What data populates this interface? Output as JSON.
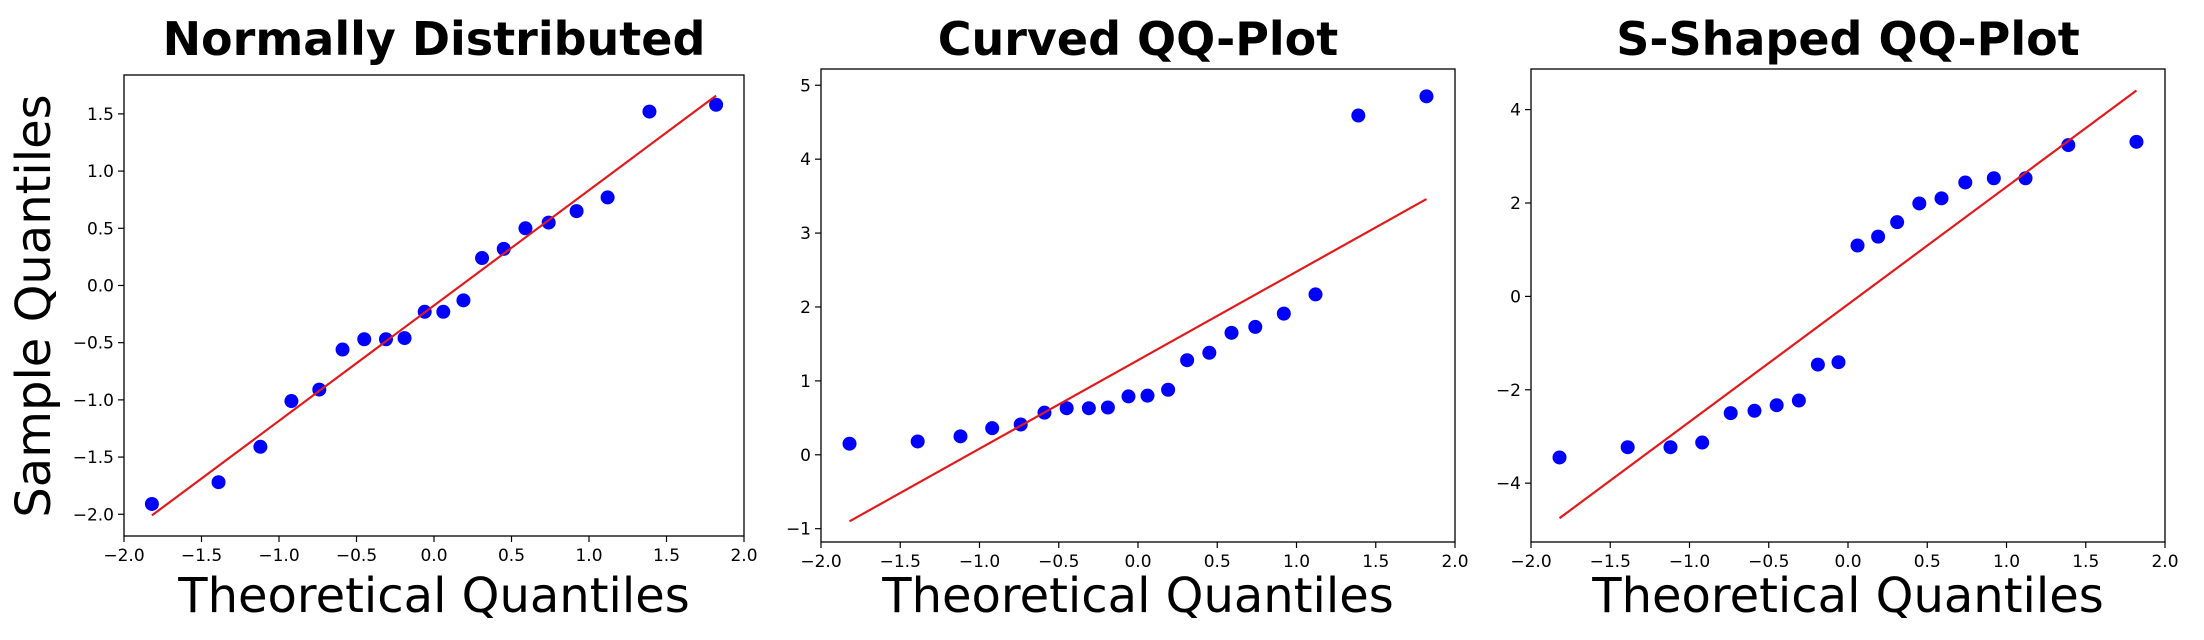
{
  "figure": {
    "ylabel": "Sample Quantiles",
    "colors": {
      "points": "#0000ff",
      "line": "#e31a1c",
      "axes": "#000000",
      "background": "#ffffff"
    }
  },
  "chart_data": [
    {
      "type": "scatter",
      "title": "Normally Distributed",
      "xlabel": "Theoretical Quantiles",
      "ylabel": "Sample Quantiles",
      "xlim": [
        -2.0,
        2.0
      ],
      "ylim": [
        -2.19,
        1.84
      ],
      "xticks": [
        -2.0,
        -1.5,
        -1.0,
        -0.5,
        0.0,
        0.5,
        1.0,
        1.5,
        2.0
      ],
      "xtick_labels": [
        "−2.0",
        "−1.5",
        "−1.0",
        "−0.5",
        "0.0",
        "0.5",
        "1.0",
        "1.5",
        "2.0"
      ],
      "yticks": [
        -2.0,
        -1.5,
        -1.0,
        -0.5,
        0.0,
        0.5,
        1.0,
        1.5
      ],
      "ytick_labels": [
        "−2.0",
        "−1.5",
        "−1.0",
        "−0.5",
        "0.0",
        "0.5",
        "1.0",
        "1.5"
      ],
      "x": [
        -1.82,
        -1.39,
        -1.12,
        -0.92,
        -0.74,
        -0.59,
        -0.45,
        -0.31,
        -0.19,
        -0.06,
        0.06,
        0.19,
        0.31,
        0.45,
        0.59,
        0.74,
        0.92,
        1.12,
        1.39,
        1.82
      ],
      "y": [
        -1.91,
        -1.72,
        -1.41,
        -1.01,
        -0.91,
        -0.56,
        -0.47,
        -0.47,
        -0.46,
        -0.23,
        -0.23,
        -0.13,
        0.24,
        0.32,
        0.5,
        0.55,
        0.65,
        0.77,
        1.52,
        1.58
      ],
      "reference_line": {
        "x": [
          -1.82,
          1.82
        ],
        "y": [
          -2.01,
          1.66
        ]
      },
      "grid": false
    },
    {
      "type": "scatter",
      "title": "Curved QQ-Plot",
      "xlabel": "Theoretical Quantiles",
      "ylabel": "",
      "xlim": [
        -2.0,
        2.0
      ],
      "ylim": [
        -1.18,
        5.22
      ],
      "xticks": [
        -2.0,
        -1.5,
        -1.0,
        -0.5,
        0.0,
        0.5,
        1.0,
        1.5,
        2.0
      ],
      "xtick_labels": [
        "−2.0",
        "−1.5",
        "−1.0",
        "−0.5",
        "0.0",
        "0.5",
        "1.0",
        "1.5",
        "2.0"
      ],
      "yticks": [
        -1,
        0,
        1,
        2,
        3,
        4,
        5
      ],
      "ytick_labels": [
        "−1",
        "0",
        "1",
        "2",
        "3",
        "4",
        "5"
      ],
      "x": [
        -1.82,
        -1.39,
        -1.12,
        -0.92,
        -0.74,
        -0.59,
        -0.45,
        -0.31,
        -0.19,
        -0.06,
        0.06,
        0.19,
        0.31,
        0.45,
        0.59,
        0.74,
        0.92,
        1.12,
        1.39,
        1.82
      ],
      "y": [
        0.15,
        0.18,
        0.25,
        0.36,
        0.41,
        0.57,
        0.63,
        0.63,
        0.64,
        0.79,
        0.8,
        0.88,
        1.28,
        1.38,
        1.65,
        1.73,
        1.91,
        2.17,
        4.59,
        4.85
      ],
      "reference_line": {
        "x": [
          -1.82,
          1.82
        ],
        "y": [
          -0.9,
          3.46
        ]
      },
      "grid": false
    },
    {
      "type": "scatter",
      "title": "S-Shaped QQ-Plot",
      "xlabel": "Theoretical Quantiles",
      "ylabel": "",
      "xlim": [
        -2.0,
        2.0
      ],
      "ylim": [
        -5.26,
        4.87
      ],
      "xticks": [
        -2.0,
        -1.5,
        -1.0,
        -0.5,
        0.0,
        0.5,
        1.0,
        1.5,
        2.0
      ],
      "xtick_labels": [
        "−2.0",
        "−1.5",
        "−1.0",
        "−0.5",
        "0.0",
        "0.5",
        "1.0",
        "1.5",
        "2.0"
      ],
      "yticks": [
        -4,
        -2,
        0,
        2,
        4
      ],
      "ytick_labels": [
        "−4",
        "−2",
        "0",
        "2",
        "4"
      ],
      "x": [
        -1.82,
        -1.39,
        -1.12,
        -0.92,
        -0.74,
        -0.59,
        -0.45,
        -0.31,
        -0.19,
        -0.06,
        0.06,
        0.19,
        0.31,
        0.45,
        0.59,
        0.74,
        0.92,
        1.12,
        1.39,
        1.82
      ],
      "y": [
        -3.45,
        -3.23,
        -3.23,
        -3.13,
        -2.5,
        -2.45,
        -2.33,
        -2.23,
        -1.46,
        -1.41,
        1.09,
        1.28,
        1.59,
        1.99,
        2.1,
        2.44,
        2.53,
        2.53,
        3.24,
        3.31
      ],
      "reference_line": {
        "x": [
          -1.82,
          1.82
        ],
        "y": [
          -4.75,
          4.41
        ]
      },
      "grid": false
    }
  ]
}
